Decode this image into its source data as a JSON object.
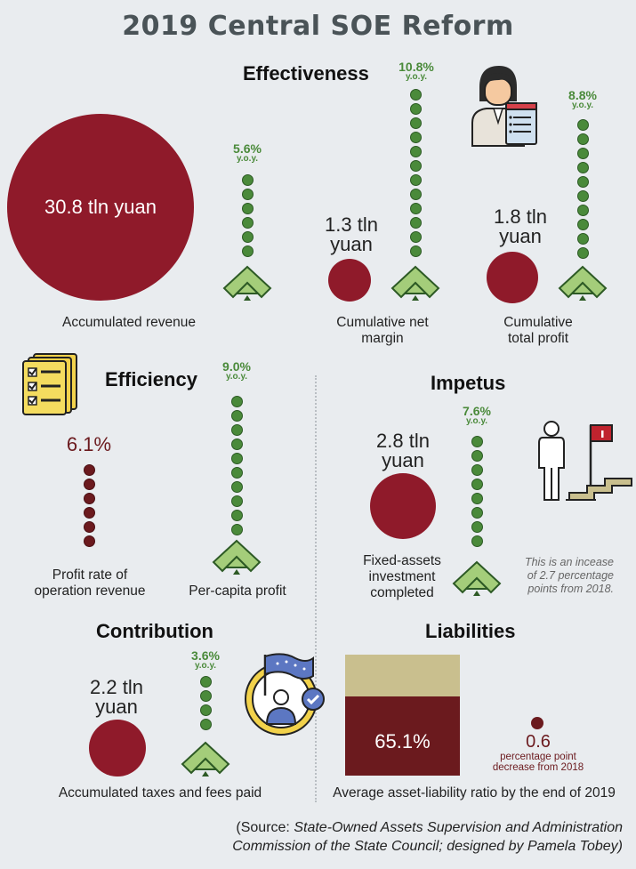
{
  "title": "2019 Central SOE Reform",
  "effectiveness": {
    "heading": "Effectiveness",
    "revenue": {
      "value": "30.8 tln yuan",
      "growth": "5.6%",
      "yoy": "y.o.y.",
      "label": "Accumulated revenue"
    },
    "net_margin": {
      "value_line1": "1.3 tln",
      "value_line2": "yuan",
      "growth": "10.8%",
      "yoy": "y.o.y.",
      "label_line1": "Cumulative net",
      "label_line2": "margin"
    },
    "profit": {
      "value_line1": "1.8 tln",
      "value_line2": "yuan",
      "growth": "8.8%",
      "yoy": "y.o.y.",
      "label_line1": "Cumulative",
      "label_line2": "total profit"
    }
  },
  "efficiency": {
    "heading": "Efficiency",
    "profit_rate": {
      "value": "6.1%",
      "label_line1": "Profit rate of",
      "label_line2": "operation revenue"
    },
    "per_capita": {
      "growth": "9.0%",
      "yoy": "y.o.y.",
      "label": "Per-capita profit"
    }
  },
  "impetus": {
    "heading": "Impetus",
    "value_line1": "2.8 tln",
    "value_line2": "yuan",
    "growth": "7.6%",
    "yoy": "y.o.y.",
    "label_line1": "Fixed-assets",
    "label_line2": "investment",
    "label_line3": "completed",
    "note_line1": "This is an incease",
    "note_line2": "of 2.7 percentage",
    "note_line3": "points from 2018."
  },
  "contribution": {
    "heading": "Contribution",
    "value_line1": "2.2 tln",
    "value_line2": "yuan",
    "growth": "3.6%",
    "yoy": "y.o.y.",
    "label": "Accumulated taxes and fees paid"
  },
  "liabilities": {
    "heading": "Liabilities",
    "ratio": "65.1%",
    "ratio_fraction": 0.651,
    "change_value": "0.6",
    "change_line1": "percentage point",
    "change_line2": "decrease from 2018",
    "label": "Average asset-liability ratio by the end of 2019"
  },
  "source": {
    "line1_prefix": "(Source: ",
    "line1_italic": "State-Owned Assets Supervision and Administration",
    "line2_italic": "Commission of the State Council; designed by Pamela Tobey)"
  },
  "colors": {
    "accent_red": "#8f1a2a",
    "dark_red": "#6b1a1e",
    "green": "#4a8a3a",
    "tan": "#c9bf8e",
    "background": "#e9ecef"
  },
  "icons": [
    "businessman-icon",
    "checklist-icon",
    "person-flag-stairs-icon",
    "award-badge-icon",
    "up-chevron-icon"
  ]
}
